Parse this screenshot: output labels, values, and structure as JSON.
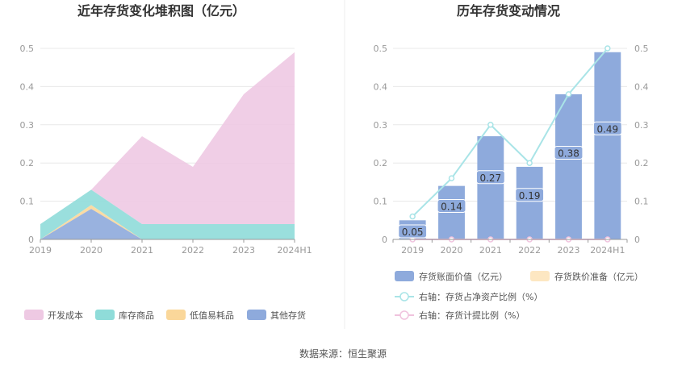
{
  "source_label": "数据来源：恒生聚源",
  "chart_data": [
    {
      "type": "area",
      "title": "近年存货变化堆积图（亿元）",
      "categories": [
        "2019",
        "2020",
        "2021",
        "2022",
        "2023",
        "2024H1"
      ],
      "ylim": [
        0,
        0.5
      ],
      "yticks": [
        "0",
        "0.1",
        "0.2",
        "0.3",
        "0.4",
        "0.5"
      ],
      "grid": true,
      "legend_position": "bottom",
      "series": [
        {
          "name": "开发成本",
          "color": "#eec9e3",
          "values": [
            0.0,
            0.0,
            0.23,
            0.15,
            0.34,
            0.45
          ]
        },
        {
          "name": "库存商品",
          "color": "#8fdcd9",
          "values": [
            0.04,
            0.04,
            0.04,
            0.04,
            0.04,
            0.04
          ]
        },
        {
          "name": "低值易耗品",
          "color": "#fad79a",
          "values": [
            0.0,
            0.01,
            0.0,
            0.0,
            0.0,
            0.0
          ]
        },
        {
          "name": "其他存货",
          "color": "#8eaadc",
          "values": [
            0.0,
            0.08,
            0.0,
            0.0,
            0.0,
            0.0
          ]
        }
      ]
    },
    {
      "type": "bar",
      "title": "历年存货变动情况",
      "categories": [
        "2019",
        "2020",
        "2021",
        "2022",
        "2023",
        "2024H1"
      ],
      "ylim": [
        0,
        0.5
      ],
      "yticks": [
        "0",
        "0.1",
        "0.2",
        "0.3",
        "0.4",
        "0.5"
      ],
      "y2lim": [
        0,
        0.5
      ],
      "y2ticks": [
        "0",
        "0.1",
        "0.2",
        "0.3",
        "0.4",
        "0.5"
      ],
      "grid": true,
      "legend_position": "bottom",
      "series": [
        {
          "name": "存货账面价值（亿元）",
          "kind": "bar",
          "color": "#8eaadc",
          "values": [
            0.05,
            0.14,
            0.27,
            0.19,
            0.38,
            0.49
          ],
          "labels": [
            "0.05",
            "0.14",
            "0.27",
            "0.19",
            "0.38",
            "0.49"
          ]
        },
        {
          "name": "存货跌价准备（亿元）",
          "kind": "bar",
          "color": "#fde7c2",
          "values": [
            0,
            0,
            0,
            0,
            0,
            0
          ]
        },
        {
          "name": "右轴：存货占净资产比例（%）",
          "kind": "line",
          "axis": "right",
          "color": "#a9e4e7",
          "values": [
            0.06,
            0.16,
            0.3,
            0.2,
            0.38,
            0.5
          ]
        },
        {
          "name": "右轴：存货计提比例（%）",
          "kind": "line",
          "axis": "right",
          "color": "#f0c3de",
          "values": [
            0,
            0,
            0,
            0,
            0,
            0
          ]
        }
      ]
    }
  ]
}
